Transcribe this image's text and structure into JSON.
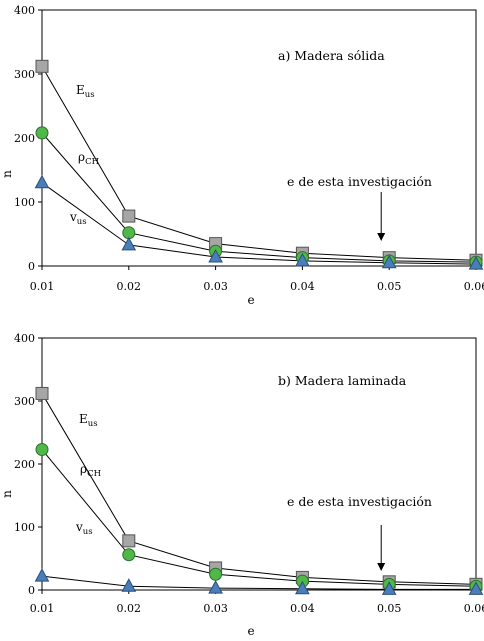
{
  "chart_data": [
    {
      "type": "line",
      "title": "a) Madera sólida",
      "xlabel": "e",
      "ylabel": "n",
      "xlim": [
        0.01,
        0.06
      ],
      "ylim": [
        0,
        400
      ],
      "x_ticks": [
        "0.01",
        "0.02",
        "0.03",
        "0.04",
        "0.05",
        "0.06"
      ],
      "y_ticks": [
        "0",
        "100",
        "200",
        "300",
        "400"
      ],
      "grid": false,
      "x": [
        0.01,
        0.02,
        0.03,
        0.04,
        0.05,
        0.06
      ],
      "series": [
        {
          "label_main": "E",
          "label_sub": "us",
          "marker": "square",
          "color": "#a6a6a6",
          "values": [
            312,
            78,
            35,
            20,
            13,
            9
          ]
        },
        {
          "label_main": "ρ",
          "label_sub": "CH",
          "marker": "circle",
          "color": "#4fb848",
          "values": [
            208,
            52,
            23,
            13,
            8,
            6
          ]
        },
        {
          "label_main": "v",
          "label_sub": "us",
          "marker": "triangle",
          "color": "#4a7ebb",
          "values": [
            130,
            33,
            14,
            8,
            5,
            3
          ]
        }
      ],
      "annotation": {
        "text": "e de esta investigación",
        "x": 0.05
      }
    },
    {
      "type": "line",
      "title": "b) Madera laminada",
      "xlabel": "e",
      "ylabel": "n",
      "xlim": [
        0.01,
        0.06
      ],
      "ylim": [
        0,
        400
      ],
      "x_ticks": [
        "0.01",
        "0.02",
        "0.03",
        "0.04",
        "0.05",
        "0.06"
      ],
      "y_ticks": [
        "0",
        "100",
        "200",
        "300",
        "400"
      ],
      "grid": false,
      "x": [
        0.01,
        0.02,
        0.03,
        0.04,
        0.05,
        0.06
      ],
      "series": [
        {
          "label_main": "E",
          "label_sub": "us",
          "marker": "square",
          "color": "#a6a6a6",
          "values": [
            312,
            78,
            35,
            20,
            13,
            9
          ]
        },
        {
          "label_main": "ρ",
          "label_sub": "CH",
          "marker": "circle",
          "color": "#4fb848",
          "values": [
            223,
            56,
            25,
            14,
            9,
            6
          ]
        },
        {
          "label_main": "v",
          "label_sub": "us",
          "marker": "triangle",
          "color": "#4a7ebb",
          "values": [
            22,
            6,
            3,
            2,
            1,
            1
          ]
        }
      ],
      "annotation": {
        "text": "e de esta investigación",
        "x": 0.05
      }
    }
  ]
}
